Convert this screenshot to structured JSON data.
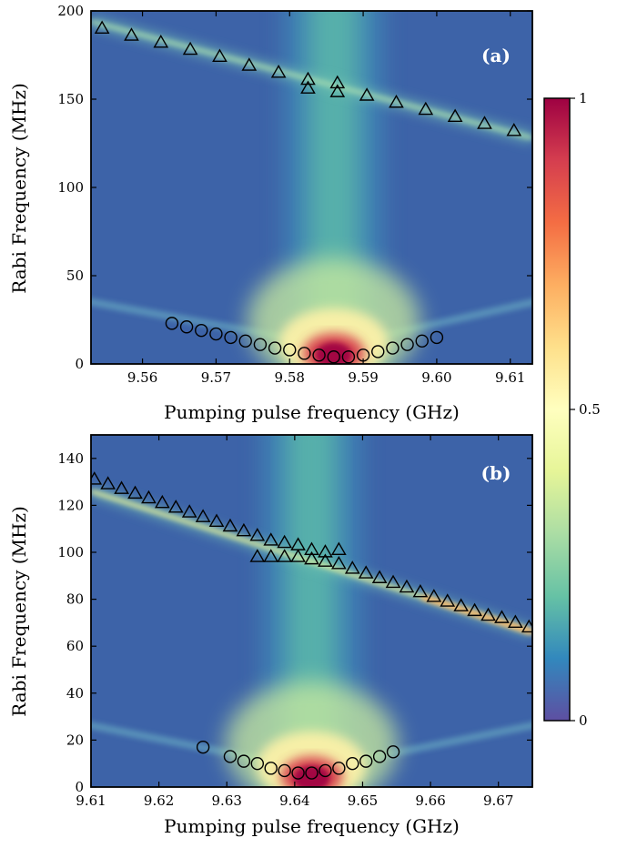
{
  "chart_data": [
    {
      "panel_label": "(a)",
      "type": "heatmap",
      "xlabel": "Pumping pulse frequency (GHz)",
      "ylabel": "Rabi Frequency (MHz)",
      "xlim": [
        9.553,
        9.613
      ],
      "ylim": [
        0,
        200
      ],
      "xticks": [
        9.56,
        9.57,
        9.58,
        9.59,
        9.6,
        9.61
      ],
      "xtick_labels": [
        "9.56",
        "9.57",
        "9.58",
        "9.59",
        "9.60",
        "9.61"
      ],
      "yticks": [
        0,
        50,
        100,
        150,
        200
      ],
      "ytick_labels": [
        "0",
        "50",
        "100",
        "150",
        "200"
      ],
      "model": {
        "center": 9.586,
        "bright_line_high": {
          "x0": 9.553,
          "y0": 194,
          "x1": 9.613,
          "y1": 128
        }
      },
      "series": [
        {
          "marker": "triangle",
          "x": [
            9.5545,
            9.5585,
            9.5625,
            9.5665,
            9.5705,
            9.5745,
            9.5785,
            9.5825,
            9.5825,
            9.5865,
            9.5865,
            9.5905,
            9.5945,
            9.5985,
            9.6025,
            9.6065,
            9.6105
          ],
          "y": [
            190,
            186,
            182,
            178,
            174,
            169,
            165,
            161,
            156,
            159,
            154,
            152,
            148,
            144,
            140,
            136,
            132
          ]
        },
        {
          "marker": "circle",
          "x": [
            9.564,
            9.566,
            9.568,
            9.57,
            9.572,
            9.574,
            9.576,
            9.578,
            9.58,
            9.582,
            9.584,
            9.586,
            9.588,
            9.59,
            9.592,
            9.594,
            9.596,
            9.598,
            9.6
          ],
          "y": [
            23,
            21,
            19,
            17,
            15,
            13,
            11,
            9,
            8,
            6,
            5,
            4,
            4,
            5,
            7,
            9,
            11,
            13,
            15
          ]
        }
      ]
    },
    {
      "panel_label": "(b)",
      "type": "heatmap",
      "xlabel": "Pumping pulse frequency (GHz)",
      "ylabel": "Rabi Frequency (MHz)",
      "xlim": [
        9.61,
        9.675
      ],
      "ylim": [
        0,
        150
      ],
      "xticks": [
        9.61,
        9.62,
        9.63,
        9.64,
        9.65,
        9.66,
        9.67
      ],
      "xtick_labels": [
        "9.61",
        "9.62",
        "9.63",
        "9.64",
        "9.65",
        "9.66",
        "9.67"
      ],
      "yticks": [
        0,
        20,
        40,
        60,
        80,
        100,
        120,
        140
      ],
      "ytick_labels": [
        "0",
        "20",
        "40",
        "60",
        "80",
        "100",
        "120",
        "140"
      ],
      "model": {
        "center": 9.6425,
        "bright_line_high": {
          "x0": 9.61,
          "y0": 126,
          "x1": 9.675,
          "y1": 66
        }
      },
      "series": [
        {
          "marker": "triangle",
          "x": [
            9.6105,
            9.6125,
            9.6145,
            9.6165,
            9.6185,
            9.6205,
            9.6225,
            9.6245,
            9.6265,
            9.6285,
            9.6305,
            9.6325,
            9.6345,
            9.6365,
            9.6385,
            9.6405,
            9.6425,
            9.6445,
            9.6465,
            9.6345,
            9.6365,
            9.6385,
            9.6405,
            9.6425,
            9.6445,
            9.6465,
            9.6485,
            9.6505,
            9.6525,
            9.6545,
            9.6565,
            9.6585,
            9.6605,
            9.6625,
            9.6645,
            9.6665,
            9.6685,
            9.6705,
            9.6725,
            9.6745
          ],
          "y": [
            131,
            129,
            127,
            125,
            123,
            121,
            119,
            117,
            115,
            113,
            111,
            109,
            107,
            105,
            104,
            103,
            101,
            100,
            101,
            98,
            98,
            98,
            98,
            97,
            96,
            95,
            93,
            91,
            89,
            87,
            85,
            83,
            81,
            79,
            77,
            75,
            73,
            72,
            70,
            68
          ]
        },
        {
          "marker": "circle",
          "x": [
            9.6265,
            9.6305,
            9.6325,
            9.6345,
            9.6365,
            9.6385,
            9.6405,
            9.6425,
            9.6445,
            9.6465,
            9.6485,
            9.6505,
            9.6525,
            9.6545
          ],
          "y": [
            17,
            13,
            11,
            10,
            8,
            7,
            6,
            6,
            7,
            8,
            10,
            11,
            13,
            15
          ]
        }
      ]
    }
  ],
  "colorbar": {
    "ticks": [
      0,
      0.5,
      1
    ],
    "tick_labels": [
      "0",
      "0.5",
      "1"
    ],
    "colormap": [
      "#5e4fa2",
      "#3288bd",
      "#66c2a5",
      "#abdda4",
      "#e6f598",
      "#ffffbf",
      "#fee08b",
      "#fdae61",
      "#f46d43",
      "#d53e4f",
      "#9e0142"
    ]
  }
}
